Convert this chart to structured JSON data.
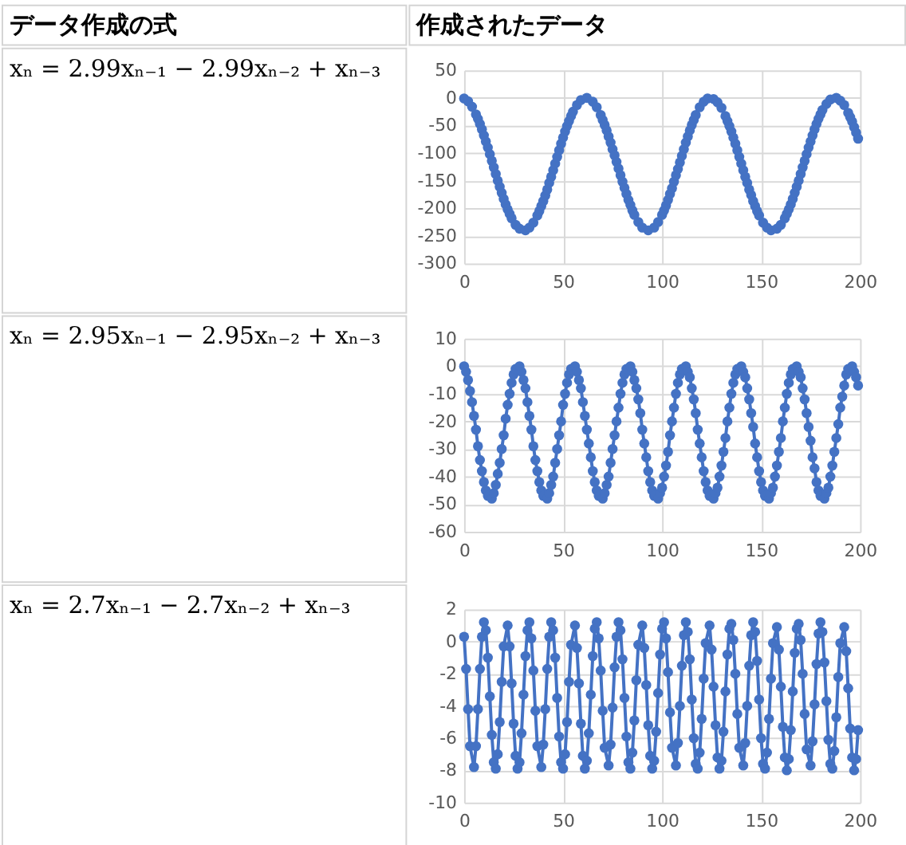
{
  "chart_data": [
    {
      "type": "scatter",
      "title": "作成されたデータ",
      "annotations": [
        "データ作成の式",
        "xₙ = 2.99xₙ₋₁ − 2.99xₙ₋₂ + xₙ₋₃"
      ],
      "marker": "circle",
      "grid": true,
      "xlim": [
        0,
        200
      ],
      "xticks": [
        0,
        50,
        100,
        150,
        200
      ],
      "ylim": [
        -300,
        50
      ],
      "yticks": [
        -300,
        -250,
        -200,
        -150,
        -100,
        -50,
        0,
        50
      ],
      "x": [
        0,
        2,
        4,
        6,
        7,
        8,
        9,
        10,
        11,
        12,
        13,
        14,
        15,
        16,
        17,
        18,
        19,
        20,
        21,
        22,
        23,
        24,
        26,
        28,
        31,
        33,
        35,
        37,
        38,
        39,
        40,
        41,
        42,
        43,
        44,
        45,
        46,
        47,
        48,
        49,
        50,
        51,
        52,
        53,
        54,
        55,
        57,
        59,
        62,
        65,
        67,
        69,
        70,
        71,
        72,
        73,
        74,
        75,
        76,
        77,
        78,
        79,
        80,
        81,
        82,
        83,
        84,
        85,
        86,
        88,
        90,
        93,
        96,
        98,
        100,
        101,
        102,
        103,
        104,
        105,
        106,
        107,
        108,
        109,
        110,
        111,
        112,
        113,
        114,
        115,
        116,
        117,
        119,
        121,
        123,
        126,
        128,
        130,
        132,
        133,
        134,
        135,
        136,
        137,
        138,
        139,
        140,
        141,
        142,
        143,
        144,
        145,
        146,
        147,
        148,
        149,
        151,
        153,
        155,
        158,
        160,
        162,
        163,
        164,
        165,
        166,
        167,
        168,
        169,
        170,
        171,
        172,
        173,
        174,
        175,
        176,
        177,
        178,
        179,
        180,
        181,
        183,
        185,
        188,
        190,
        192,
        194,
        195,
        196,
        197,
        198,
        199
      ],
      "series": [
        {
          "color": "#4472c4",
          "values": [
            -1,
            -6,
            -16,
            -30,
            -38,
            -47,
            -57,
            -68,
            -79,
            -90,
            -102,
            -114,
            -126,
            -138,
            -150,
            -161,
            -172,
            -183,
            -193,
            -202,
            -210,
            -218,
            -230,
            -237,
            -240,
            -235,
            -226,
            -213,
            -205,
            -196,
            -187,
            -177,
            -166,
            -154,
            -143,
            -131,
            -119,
            -107,
            -95,
            -83,
            -72,
            -61,
            -51,
            -42,
            -33,
            -25,
            -13,
            -4,
            0,
            -7,
            -17,
            -31,
            -40,
            -49,
            -59,
            -70,
            -81,
            -93,
            -104,
            -116,
            -128,
            -140,
            -152,
            -163,
            -174,
            -185,
            -194,
            -204,
            -212,
            -225,
            -235,
            -240,
            -235,
            -225,
            -212,
            -204,
            -195,
            -185,
            -174,
            -164,
            -152,
            -140,
            -129,
            -117,
            -105,
            -93,
            -81,
            -70,
            -59,
            -49,
            -40,
            -31,
            -17,
            -7,
            -1,
            -2,
            -8,
            -18,
            -33,
            -42,
            -51,
            -61,
            -72,
            -83,
            -95,
            -107,
            -119,
            -131,
            -143,
            -154,
            -166,
            -176,
            -187,
            -196,
            -205,
            -213,
            -226,
            -235,
            -240,
            -237,
            -230,
            -218,
            -210,
            -202,
            -193,
            -183,
            -172,
            -161,
            -150,
            -138,
            -126,
            -114,
            -102,
            -90,
            -79,
            -68,
            -57,
            -47,
            -38,
            -30,
            -22,
            -11,
            -3,
            0,
            -5,
            -13,
            -27,
            -35,
            -43,
            -53,
            -63,
            -74
          ]
        }
      ]
    },
    {
      "type": "line",
      "annotations": [
        "xₙ = 2.95xₙ₋₁ − 2.95xₙ₋₂ + xₙ₋₃"
      ],
      "marker": "circle",
      "line_style": "solid",
      "grid": true,
      "xlim": [
        0,
        200
      ],
      "xticks": [
        0,
        50,
        100,
        150,
        200
      ],
      "ylim": [
        -60,
        10
      ],
      "yticks": [
        -60,
        -50,
        -40,
        -30,
        -20,
        -10,
        0,
        10
      ],
      "x": [
        0,
        1,
        2,
        3,
        4,
        5,
        6,
        7,
        8,
        9,
        10,
        11,
        12,
        14,
        15,
        16,
        17,
        18,
        19,
        20,
        21,
        22,
        23,
        24,
        25,
        26,
        28,
        29,
        30,
        31,
        32,
        33,
        34,
        35,
        36,
        37,
        38,
        39,
        40,
        42,
        43,
        44,
        45,
        46,
        47,
        48,
        49,
        50,
        51,
        52,
        53,
        54,
        56,
        57,
        58,
        59,
        60,
        61,
        62,
        63,
        64,
        65,
        66,
        67,
        68,
        70,
        71,
        72,
        73,
        74,
        75,
        76,
        77,
        78,
        79,
        80,
        81,
        82,
        84,
        85,
        86,
        87,
        88,
        89,
        90,
        91,
        92,
        93,
        94,
        95,
        96,
        98,
        99,
        100,
        101,
        102,
        103,
        104,
        105,
        106,
        107,
        108,
        109,
        110,
        112,
        113,
        114,
        115,
        116,
        117,
        118,
        119,
        120,
        121,
        122,
        123,
        124,
        126,
        127,
        128,
        129,
        130,
        131,
        132,
        133,
        134,
        135,
        136,
        137,
        138,
        140,
        141,
        142,
        143,
        144,
        145,
        146,
        147,
        148,
        149,
        150,
        151,
        152,
        154,
        155,
        156,
        157,
        158,
        159,
        160,
        161,
        162,
        163,
        164,
        165,
        166,
        168,
        169,
        170,
        171,
        172,
        173,
        174,
        175,
        176,
        177,
        178,
        179,
        180,
        182,
        183,
        184,
        185,
        186,
        187,
        188,
        189,
        190,
        191,
        192,
        193,
        194,
        196,
        197,
        198,
        199
      ],
      "series": [
        {
          "color": "#4472c4",
          "values": [
            0,
            -2,
            -5,
            -9,
            -13,
            -18,
            -23,
            -29,
            -34,
            -38,
            -42,
            -45,
            -47,
            -48,
            -46,
            -43,
            -39,
            -35,
            -30,
            -25,
            -19,
            -14,
            -10,
            -6,
            -3,
            -1,
            0,
            -2,
            -5,
            -8,
            -13,
            -18,
            -23,
            -29,
            -34,
            -38,
            -42,
            -45,
            -47,
            -48,
            -46,
            -43,
            -40,
            -35,
            -30,
            -25,
            -20,
            -14,
            -10,
            -6,
            -3,
            -1,
            0,
            -2,
            -5,
            -8,
            -13,
            -18,
            -23,
            -28,
            -33,
            -38,
            -42,
            -45,
            -47,
            -48,
            -46,
            -43,
            -40,
            -35,
            -30,
            -25,
            -20,
            -15,
            -10,
            -6,
            -3,
            -1,
            0,
            -2,
            -5,
            -8,
            -12,
            -17,
            -23,
            -28,
            -33,
            -38,
            -42,
            -45,
            -47,
            -48,
            -46,
            -44,
            -40,
            -36,
            -31,
            -25,
            -20,
            -15,
            -10,
            -6,
            -3,
            -1,
            0,
            -2,
            -4,
            -8,
            -12,
            -17,
            -23,
            -28,
            -33,
            -38,
            -42,
            -45,
            -47,
            -48,
            -46,
            -44,
            -40,
            -36,
            -31,
            -26,
            -20,
            -15,
            -10,
            -6,
            -3,
            -1,
            0,
            -2,
            -4,
            -8,
            -12,
            -17,
            -22,
            -28,
            -33,
            -38,
            -42,
            -45,
            -47,
            -48,
            -46,
            -44,
            -40,
            -36,
            -31,
            -26,
            -20,
            -15,
            -10,
            -6,
            -3,
            -1,
            0,
            -2,
            -4,
            -8,
            -12,
            -17,
            -22,
            -27,
            -33,
            -37,
            -42,
            -45,
            -47,
            -48,
            -46,
            -44,
            -40,
            -36,
            -31,
            -26,
            -21,
            -15,
            -11,
            -7,
            -3,
            -1,
            0,
            -2,
            -4,
            -7
          ]
        }
      ]
    },
    {
      "type": "line",
      "annotations": [
        "xₙ = 2.7xₙ₋₁ − 2.7xₙ₋₂ + xₙ₋₃"
      ],
      "marker": "circle",
      "line_style": "solid",
      "grid": true,
      "xlim": [
        0,
        200
      ],
      "xticks": [
        0,
        50,
        100,
        150,
        200
      ],
      "ylim": [
        -10,
        2
      ],
      "yticks": [
        -10,
        -8,
        -6,
        -4,
        -2,
        0,
        2
      ],
      "x": [
        0,
        1,
        2,
        3,
        5,
        6,
        7,
        8,
        9,
        10,
        11,
        12,
        13,
        14,
        15,
        16,
        17,
        18,
        19,
        20,
        22,
        23,
        24,
        25,
        26,
        27,
        28,
        29,
        30,
        31,
        32,
        33,
        34,
        35,
        36,
        37,
        39,
        40,
        41,
        42,
        43,
        44,
        45,
        46,
        47,
        48,
        49,
        50,
        51,
        52,
        53,
        54,
        56,
        57,
        58,
        59,
        60,
        61,
        62,
        63,
        64,
        65,
        66,
        67,
        68,
        69,
        70,
        71,
        73,
        74,
        75,
        76,
        77,
        78,
        79,
        80,
        81,
        82,
        83,
        84,
        85,
        86,
        87,
        88,
        90,
        91,
        92,
        93,
        94,
        95,
        96,
        97,
        98,
        99,
        100,
        101,
        102,
        103,
        104,
        105,
        107,
        108,
        109,
        110,
        111,
        112,
        113,
        114,
        115,
        116,
        117,
        118,
        119,
        120,
        121,
        122,
        124,
        125,
        126,
        127,
        128,
        129,
        130,
        131,
        132,
        133,
        134,
        135,
        136,
        137,
        138,
        139,
        141,
        142,
        143,
        144,
        145,
        146,
        147,
        148,
        149,
        150,
        151,
        152,
        153,
        154,
        155,
        156,
        158,
        159,
        160,
        161,
        162,
        163,
        164,
        165,
        166,
        167,
        168,
        169,
        170,
        171,
        172,
        173,
        175,
        176,
        177,
        178,
        179,
        180,
        181,
        182,
        183,
        184,
        185,
        186,
        187,
        188,
        189,
        190,
        192,
        193,
        194,
        195,
        196,
        197,
        198,
        199
      ],
      "series": [
        {
          "color": "#4472c4",
          "values": [
            0.3,
            -1.7,
            -4.2,
            -6.5,
            -7.8,
            -6.5,
            -4.2,
            -1.7,
            0.3,
            1.2,
            0.7,
            -1.0,
            -3.4,
            -5.8,
            -7.5,
            -7.9,
            -7.0,
            -5.0,
            -2.5,
            -0.3,
            1.0,
            -0.3,
            -2.6,
            -5.1,
            -7.1,
            -7.9,
            -7.5,
            -5.7,
            -3.3,
            -0.9,
            0.7,
            1.2,
            0.2,
            -1.8,
            -4.3,
            -6.5,
            -7.8,
            -6.4,
            -4.2,
            -1.7,
            0.3,
            1.2,
            0.7,
            -1.0,
            -3.5,
            -5.9,
            -7.5,
            -7.9,
            -7.0,
            -5.0,
            -2.5,
            -0.2,
            1.0,
            -0.4,
            -2.6,
            -5.1,
            -7.1,
            -7.9,
            -7.4,
            -5.7,
            -3.3,
            -0.9,
            0.8,
            1.2,
            0.2,
            -1.8,
            -4.3,
            -6.6,
            -7.7,
            -6.4,
            -4.1,
            -1.6,
            0.3,
            1.2,
            0.7,
            -1.1,
            -3.5,
            -5.9,
            -7.5,
            -7.9,
            -6.9,
            -4.9,
            -2.4,
            -0.2,
            1.0,
            -0.4,
            -2.7,
            -5.2,
            -7.1,
            -7.9,
            -7.4,
            -5.6,
            -3.2,
            -0.8,
            0.8,
            1.2,
            0.2,
            -1.9,
            -4.4,
            -6.6,
            -7.7,
            -6.3,
            -4.0,
            -1.5,
            0.4,
            1.2,
            0.6,
            -1.1,
            -3.6,
            -6.0,
            -7.6,
            -7.9,
            -6.9,
            -4.8,
            -2.3,
            -0.1,
            1.0,
            -0.5,
            -2.8,
            -5.2,
            -7.2,
            -7.9,
            -7.4,
            -5.6,
            -3.1,
            -0.8,
            0.8,
            1.1,
            0.1,
            -2.0,
            -4.5,
            -6.6,
            -7.7,
            -6.3,
            -4.0,
            -1.5,
            0.4,
            1.2,
            0.6,
            -1.2,
            -3.6,
            -6.0,
            -7.6,
            -7.9,
            -6.9,
            -4.8,
            -2.3,
            -0.1,
            0.9,
            -0.5,
            -2.8,
            -5.3,
            -7.2,
            -8.0,
            -7.3,
            -5.5,
            -3.1,
            -0.7,
            0.8,
            1.1,
            0.1,
            -2.0,
            -4.5,
            -6.7,
            -7.7,
            -6.2,
            -3.9,
            -1.4,
            0.5,
            1.2,
            0.6,
            -1.3,
            -3.7,
            -6.1,
            -7.6,
            -7.9,
            -6.8,
            -4.7,
            -2.2,
            -0.1,
            0.9,
            -0.6,
            -2.9,
            -5.4,
            -7.2,
            -8.0,
            -7.3,
            -5.5
          ]
        }
      ]
    }
  ]
}
